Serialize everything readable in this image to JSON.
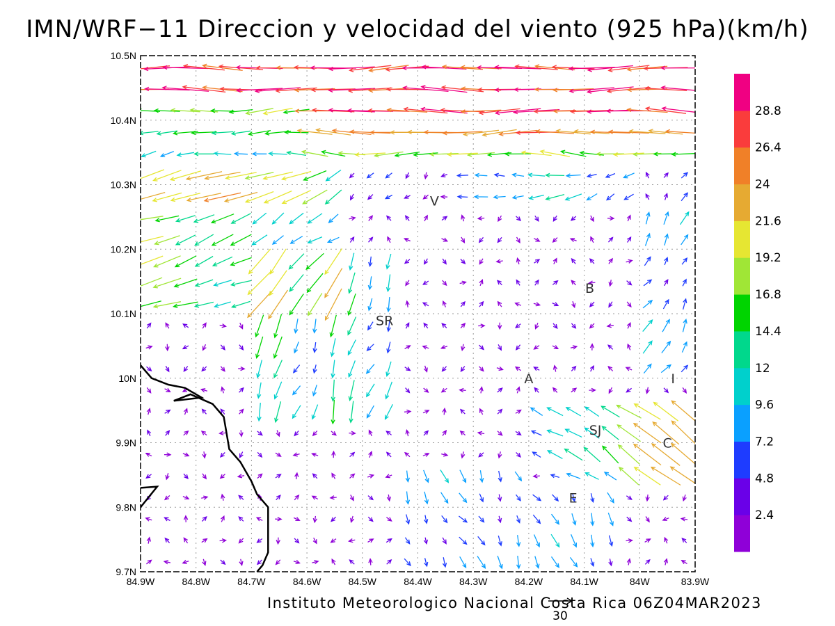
{
  "title": "IMN/WRF−11 Direccion y velocidad del viento (925 hPa)(km/h)",
  "footer": "Instituto Meteorologico Nacional Costa Rica 06Z04MAR2023",
  "reference_vector_label": "30",
  "lon_labels": [
    "84.9W",
    "84.8W",
    "84.7W",
    "84.6W",
    "84.5W",
    "84.4W",
    "84.3W",
    "84.2W",
    "84.1W",
    "84W",
    "83.9W"
  ],
  "lat_labels": [
    "9.7N",
    "9.8N",
    "9.9N",
    "10N",
    "10.1N",
    "10.2N",
    "10.3N",
    "10.4N",
    "10.5N"
  ],
  "map_extent": {
    "lon_min": -84.9,
    "lon_max": -83.9,
    "lat_min": 9.7,
    "lat_max": 10.5
  },
  "grid": {
    "visible": true,
    "style": "dotted",
    "spacing_deg": 0.1
  },
  "colorbar": {
    "labels": [
      "2.4",
      "4.8",
      "7.2",
      "9.6",
      "12",
      "14.4",
      "16.8",
      "19.2",
      "21.6",
      "24",
      "26.4",
      "28.8"
    ],
    "colors": [
      "#8f00d8",
      "#6a00e8",
      "#1e3cff",
      "#0aa0ff",
      "#00d0cc",
      "#00d88c",
      "#00d400",
      "#a0e636",
      "#e6e632",
      "#e6aa32",
      "#f08028",
      "#fa3c3c",
      "#f00082"
    ]
  },
  "city_labels": [
    {
      "text": "V",
      "lon": -84.37,
      "lat": 10.275
    },
    {
      "text": "B",
      "lon": -84.09,
      "lat": 10.14
    },
    {
      "text": "SR",
      "lon": -84.46,
      "lat": 10.09
    },
    {
      "text": "A",
      "lon": -84.2,
      "lat": 10.0
    },
    {
      "text": "I",
      "lon": -83.94,
      "lat": 10.0
    },
    {
      "text": "SJ",
      "lon": -84.08,
      "lat": 9.92
    },
    {
      "text": "C",
      "lon": -83.95,
      "lat": 9.9
    },
    {
      "text": "E",
      "lon": -84.12,
      "lat": 9.815
    }
  ],
  "coastline": [
    [
      -84.9,
      10.02
    ],
    [
      -84.88,
      10.0
    ],
    [
      -84.85,
      9.99
    ],
    [
      -84.82,
      9.985
    ],
    [
      -84.79,
      9.97
    ],
    [
      -84.84,
      9.965
    ],
    [
      -84.81,
      9.975
    ],
    [
      -84.77,
      9.96
    ],
    [
      -84.75,
      9.94
    ],
    [
      -84.74,
      9.89
    ],
    [
      -84.72,
      9.87
    ],
    [
      -84.7,
      9.84
    ],
    [
      -84.69,
      9.82
    ],
    [
      -84.67,
      9.8
    ],
    [
      -84.67,
      9.76
    ],
    [
      -84.67,
      9.73
    ],
    [
      -84.68,
      9.71
    ],
    [
      -84.69,
      9.7
    ]
  ],
  "coastline_south": [
    [
      -84.9,
      9.83
    ],
    [
      -84.87,
      9.832
    ],
    [
      -84.9,
      9.8
    ]
  ]
}
